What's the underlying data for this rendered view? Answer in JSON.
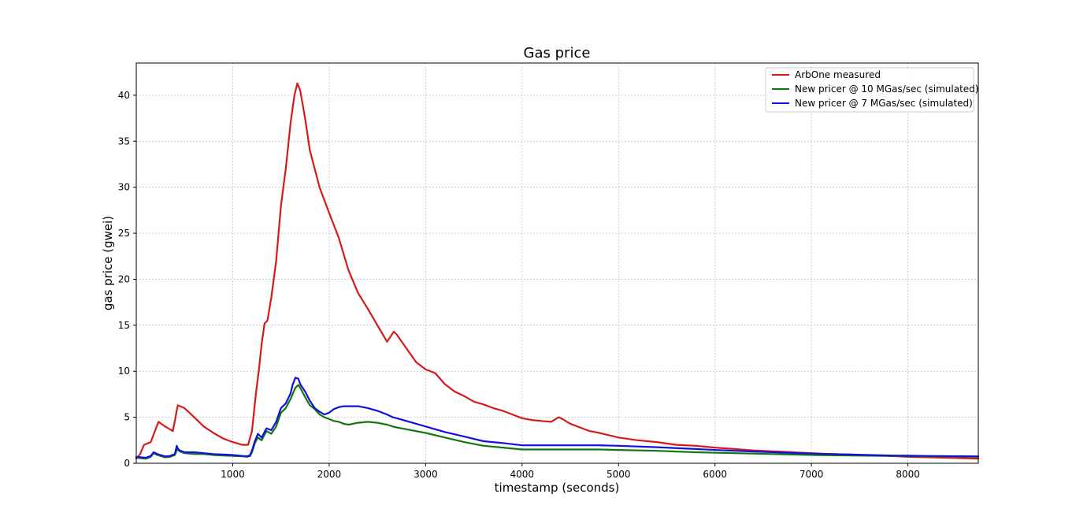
{
  "chart_data": {
    "type": "line",
    "title": "Gas price",
    "xlabel": "timestamp (seconds)",
    "ylabel": "gas price (gwei)",
    "xlim": [
      0,
      8730
    ],
    "ylim": [
      0,
      43.5
    ],
    "x_ticks": [
      1000,
      2000,
      3000,
      4000,
      5000,
      6000,
      7000,
      8000
    ],
    "x_tick_labels": [
      "1000",
      "2000",
      "3000",
      "4000",
      "5000",
      "6000",
      "7000",
      "8000"
    ],
    "y_ticks": [
      0,
      5,
      10,
      15,
      20,
      25,
      30,
      35,
      40
    ],
    "y_tick_labels": [
      "0",
      "5",
      "10",
      "15",
      "20",
      "25",
      "30",
      "35",
      "40"
    ],
    "grid": true,
    "legend_position": "top-right",
    "series": [
      {
        "name": "ArbOne measured",
        "color": "#d7191c",
        "x": [
          0,
          40,
          80,
          150,
          230,
          300,
          380,
          430,
          500,
          600,
          700,
          800,
          900,
          1000,
          1100,
          1160,
          1200,
          1240,
          1270,
          1300,
          1330,
          1360,
          1400,
          1450,
          1500,
          1550,
          1600,
          1640,
          1670,
          1700,
          1750,
          1800,
          1900,
          2000,
          2100,
          2200,
          2300,
          2400,
          2500,
          2600,
          2670,
          2700,
          2800,
          2900,
          3000,
          3100,
          3200,
          3300,
          3400,
          3500,
          3600,
          3700,
          3800,
          3900,
          4000,
          4100,
          4200,
          4300,
          4380,
          4420,
          4500,
          4600,
          4700,
          4800,
          5000,
          5200,
          5400,
          5600,
          5800,
          6000,
          6200,
          6400,
          6600,
          6800,
          7000,
          7200,
          7400,
          7600,
          7800,
          8000,
          8200,
          8400,
          8600,
          8730
        ],
        "values": [
          0.5,
          1.0,
          2.0,
          2.3,
          4.5,
          4.0,
          3.5,
          6.3,
          6.0,
          5.0,
          4.0,
          3.3,
          2.7,
          2.3,
          2.0,
          2.0,
          3.5,
          7.5,
          10.0,
          13.0,
          15.2,
          15.5,
          18.0,
          22.0,
          28.0,
          32.0,
          37.0,
          40.0,
          41.3,
          40.5,
          37.5,
          34.0,
          30.0,
          27.2,
          24.5,
          21.0,
          18.5,
          16.8,
          15.0,
          13.2,
          14.3,
          14.0,
          12.5,
          11.0,
          10.2,
          9.8,
          8.6,
          7.8,
          7.3,
          6.7,
          6.4,
          6.0,
          5.7,
          5.3,
          4.9,
          4.7,
          4.6,
          4.5,
          5.0,
          4.8,
          4.3,
          3.9,
          3.5,
          3.3,
          2.8,
          2.5,
          2.3,
          2.0,
          1.9,
          1.7,
          1.55,
          1.4,
          1.3,
          1.2,
          1.1,
          1.0,
          0.95,
          0.85,
          0.8,
          0.7,
          0.65,
          0.6,
          0.55,
          0.5
        ]
      },
      {
        "name": "New pricer @ 10 MGas/sec (simulated)",
        "color": "#117711",
        "x": [
          0,
          100,
          150,
          180,
          220,
          250,
          300,
          350,
          400,
          420,
          430,
          450,
          500,
          600,
          700,
          800,
          900,
          1000,
          1100,
          1150,
          1180,
          1200,
          1230,
          1260,
          1300,
          1350,
          1400,
          1450,
          1500,
          1550,
          1600,
          1620,
          1650,
          1680,
          1700,
          1750,
          1800,
          1850,
          1900,
          1950,
          2000,
          2050,
          2100,
          2150,
          2200,
          2300,
          2400,
          2500,
          2600,
          2660,
          2700,
          2800,
          3000,
          3200,
          3400,
          3600,
          3800,
          4000,
          4200,
          4400,
          4600,
          4800,
          5000,
          5400,
          5800,
          6200,
          6600,
          7000,
          7400,
          7800,
          8200,
          8730
        ],
        "values": [
          0.6,
          0.5,
          0.7,
          1.1,
          0.9,
          0.8,
          0.65,
          0.7,
          0.9,
          1.4,
          1.5,
          1.3,
          1.1,
          1.0,
          1.0,
          0.9,
          0.85,
          0.8,
          0.75,
          0.7,
          0.8,
          1.2,
          2.2,
          2.8,
          2.5,
          3.5,
          3.2,
          4.0,
          5.5,
          6.0,
          7.0,
          7.5,
          8.2,
          8.5,
          8.2,
          7.2,
          6.3,
          5.9,
          5.3,
          5.0,
          4.8,
          4.6,
          4.5,
          4.3,
          4.2,
          4.4,
          4.5,
          4.4,
          4.2,
          4.0,
          3.9,
          3.7,
          3.3,
          2.8,
          2.3,
          1.9,
          1.7,
          1.5,
          1.5,
          1.5,
          1.5,
          1.5,
          1.45,
          1.35,
          1.2,
          1.1,
          1.0,
          0.9,
          0.85,
          0.8,
          0.75,
          0.7
        ]
      },
      {
        "name": "New pricer @ 7 MGas/sec (simulated)",
        "color": "#1010e0",
        "x": [
          0,
          100,
          150,
          180,
          220,
          250,
          300,
          350,
          400,
          420,
          430,
          450,
          500,
          600,
          700,
          800,
          900,
          1000,
          1100,
          1150,
          1180,
          1200,
          1230,
          1260,
          1300,
          1350,
          1400,
          1450,
          1500,
          1550,
          1600,
          1620,
          1650,
          1680,
          1700,
          1750,
          1800,
          1850,
          1900,
          1950,
          2000,
          2050,
          2100,
          2150,
          2200,
          2300,
          2400,
          2500,
          2600,
          2660,
          2700,
          2800,
          3000,
          3200,
          3400,
          3600,
          3800,
          4000,
          4200,
          4400,
          4600,
          4800,
          5000,
          5400,
          5800,
          6200,
          6600,
          7000,
          7400,
          7800,
          8200,
          8730
        ],
        "values": [
          0.7,
          0.6,
          0.8,
          1.2,
          1.0,
          0.9,
          0.75,
          0.8,
          1.0,
          1.9,
          1.6,
          1.4,
          1.2,
          1.2,
          1.1,
          1.0,
          0.95,
          0.9,
          0.8,
          0.75,
          0.9,
          1.4,
          2.4,
          3.2,
          2.8,
          3.8,
          3.6,
          4.5,
          6.0,
          6.5,
          7.6,
          8.5,
          9.3,
          9.2,
          8.6,
          7.8,
          6.8,
          6.0,
          5.6,
          5.3,
          5.5,
          5.9,
          6.1,
          6.2,
          6.2,
          6.2,
          6.0,
          5.7,
          5.3,
          5.0,
          4.9,
          4.6,
          4.0,
          3.4,
          2.9,
          2.4,
          2.2,
          1.95,
          1.95,
          1.95,
          1.95,
          1.95,
          1.9,
          1.75,
          1.55,
          1.35,
          1.2,
          1.05,
          0.95,
          0.85,
          0.8,
          0.75
        ]
      }
    ]
  }
}
